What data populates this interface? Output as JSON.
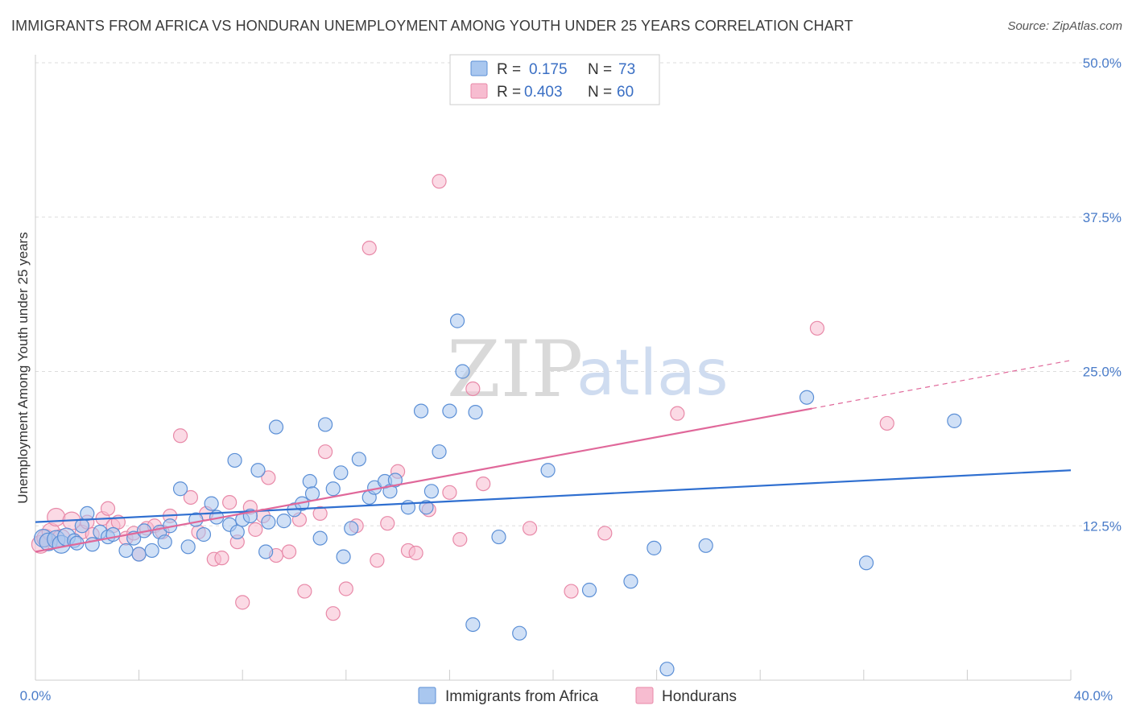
{
  "header": {
    "title": "IMMIGRANTS FROM AFRICA VS HONDURAN UNEMPLOYMENT AMONG YOUTH UNDER 25 YEARS CORRELATION CHART",
    "source": "Source: ZipAtlas.com"
  },
  "watermark": {
    "zip": "ZIP",
    "atlas": "atlas"
  },
  "legend": {
    "rows": [
      {
        "r_label": "R =",
        "r_value": "0.175",
        "n_label": "N =",
        "n_value": "73"
      },
      {
        "r_label": "R =",
        "r_value": "0.403",
        "n_label": "N =",
        "n_value": "60"
      }
    ]
  },
  "bottom_legend": {
    "items": [
      "Immigrants from Africa",
      "Hondurans"
    ]
  },
  "colors": {
    "africa_fill": "#a9c7ef",
    "africa_stroke": "#5b8fd6",
    "africa_line": "#2f6fd0",
    "honduran_fill": "#f7bcd0",
    "honduran_stroke": "#e889a8",
    "honduran_line": "#e0689a",
    "grid": "#dddddd",
    "tick_text": "#4a7cc9"
  },
  "chart_data": {
    "type": "scatter",
    "title": "IMMIGRANTS FROM AFRICA VS HONDURAN UNEMPLOYMENT AMONG YOUTH UNDER 25 YEARS CORRELATION CHART",
    "xlabel": "",
    "ylabel": "Unemployment Among Youth under 25 years",
    "xlim": [
      0,
      40
    ],
    "ylim": [
      0,
      50
    ],
    "x_tick_labels": [
      "0.0%",
      "40.0%"
    ],
    "y_ticks": [
      12.5,
      25.0,
      37.5,
      50.0
    ],
    "y_tick_labels": [
      "12.5%",
      "25.0%",
      "37.5%",
      "50.0%"
    ],
    "grid": true,
    "series": [
      {
        "name": "Immigrants from Africa",
        "R": 0.175,
        "N": 73,
        "trend": {
          "x": [
            0,
            40
          ],
          "y": [
            12.8,
            17.0
          ]
        },
        "points": [
          [
            0.3,
            11.5
          ],
          [
            0.5,
            11.2
          ],
          [
            0.8,
            11.4
          ],
          [
            1.0,
            11.0
          ],
          [
            1.2,
            11.6
          ],
          [
            1.5,
            11.3
          ],
          [
            1.6,
            11.1
          ],
          [
            1.8,
            12.5
          ],
          [
            2.0,
            13.5
          ],
          [
            2.2,
            11.0
          ],
          [
            2.5,
            12.0
          ],
          [
            2.8,
            11.6
          ],
          [
            3.0,
            11.8
          ],
          [
            3.5,
            10.5
          ],
          [
            3.8,
            11.5
          ],
          [
            4.0,
            10.2
          ],
          [
            4.2,
            12.1
          ],
          [
            4.5,
            10.5
          ],
          [
            4.8,
            12.0
          ],
          [
            5.0,
            11.2
          ],
          [
            5.2,
            12.5
          ],
          [
            5.6,
            15.5
          ],
          [
            5.9,
            10.8
          ],
          [
            6.2,
            13.0
          ],
          [
            6.5,
            11.8
          ],
          [
            6.8,
            14.3
          ],
          [
            7.0,
            13.2
          ],
          [
            7.5,
            12.6
          ],
          [
            7.7,
            17.8
          ],
          [
            7.8,
            12.0
          ],
          [
            8.0,
            13.0
          ],
          [
            8.3,
            13.3
          ],
          [
            8.6,
            17.0
          ],
          [
            8.9,
            10.4
          ],
          [
            9.0,
            12.8
          ],
          [
            9.3,
            20.5
          ],
          [
            9.6,
            12.9
          ],
          [
            10.0,
            13.8
          ],
          [
            10.3,
            14.3
          ],
          [
            10.6,
            16.1
          ],
          [
            10.7,
            15.1
          ],
          [
            11.0,
            11.5
          ],
          [
            11.2,
            20.7
          ],
          [
            11.5,
            15.5
          ],
          [
            11.8,
            16.8
          ],
          [
            11.9,
            10.0
          ],
          [
            12.2,
            12.3
          ],
          [
            12.5,
            17.9
          ],
          [
            12.9,
            14.8
          ],
          [
            13.1,
            15.6
          ],
          [
            13.5,
            16.1
          ],
          [
            13.7,
            15.3
          ],
          [
            13.9,
            16.2
          ],
          [
            14.4,
            14.0
          ],
          [
            14.9,
            21.8
          ],
          [
            15.1,
            14.0
          ],
          [
            15.3,
            15.3
          ],
          [
            15.6,
            18.5
          ],
          [
            16.0,
            21.8
          ],
          [
            16.3,
            29.1
          ],
          [
            16.5,
            25.0
          ],
          [
            16.9,
            4.5
          ],
          [
            17.0,
            21.7
          ],
          [
            17.9,
            11.6
          ],
          [
            18.7,
            3.8
          ],
          [
            19.8,
            17.0
          ],
          [
            21.4,
            7.3
          ],
          [
            23.0,
            8.0
          ],
          [
            23.9,
            10.7
          ],
          [
            24.4,
            0.9
          ],
          [
            25.9,
            10.9
          ],
          [
            29.8,
            22.9
          ],
          [
            32.1,
            9.5
          ],
          [
            35.5,
            21.0
          ]
        ]
      },
      {
        "name": "Hondurans",
        "R": 0.403,
        "N": 60,
        "trend": {
          "x": [
            0,
            30
          ],
          "y": [
            10.4,
            22.0
          ]
        },
        "trend_dashed": {
          "x": [
            30,
            40
          ],
          "y": [
            22.0,
            25.9
          ]
        },
        "points": [
          [
            0.2,
            11.0
          ],
          [
            0.4,
            11.5
          ],
          [
            0.6,
            12.0
          ],
          [
            0.8,
            13.2
          ],
          [
            1.0,
            11.5
          ],
          [
            1.4,
            12.9
          ],
          [
            1.8,
            12.0
          ],
          [
            2.0,
            12.8
          ],
          [
            2.2,
            11.8
          ],
          [
            2.6,
            13.1
          ],
          [
            2.8,
            13.9
          ],
          [
            3.0,
            12.5
          ],
          [
            3.2,
            12.8
          ],
          [
            3.5,
            11.5
          ],
          [
            3.8,
            11.9
          ],
          [
            4.0,
            10.2
          ],
          [
            4.3,
            12.3
          ],
          [
            4.6,
            12.5
          ],
          [
            4.9,
            12.0
          ],
          [
            5.2,
            13.3
          ],
          [
            5.6,
            19.8
          ],
          [
            6.0,
            14.8
          ],
          [
            6.3,
            12.0
          ],
          [
            6.6,
            13.5
          ],
          [
            6.9,
            9.8
          ],
          [
            7.2,
            9.9
          ],
          [
            7.5,
            14.4
          ],
          [
            7.8,
            11.2
          ],
          [
            8.0,
            6.3
          ],
          [
            8.3,
            14.0
          ],
          [
            8.5,
            12.2
          ],
          [
            8.8,
            13.3
          ],
          [
            9.0,
            16.4
          ],
          [
            9.3,
            10.1
          ],
          [
            9.8,
            10.4
          ],
          [
            10.2,
            13.0
          ],
          [
            10.4,
            7.2
          ],
          [
            11.0,
            13.5
          ],
          [
            11.2,
            18.5
          ],
          [
            11.5,
            5.4
          ],
          [
            12.0,
            7.4
          ],
          [
            12.4,
            12.5
          ],
          [
            12.9,
            35.0
          ],
          [
            13.2,
            9.7
          ],
          [
            13.6,
            12.7
          ],
          [
            14.0,
            16.9
          ],
          [
            14.4,
            10.5
          ],
          [
            14.7,
            10.3
          ],
          [
            15.2,
            13.8
          ],
          [
            15.6,
            40.4
          ],
          [
            16.0,
            15.2
          ],
          [
            16.4,
            11.4
          ],
          [
            16.9,
            23.6
          ],
          [
            17.3,
            15.9
          ],
          [
            19.1,
            12.3
          ],
          [
            20.7,
            7.2
          ],
          [
            22.0,
            11.9
          ],
          [
            24.8,
            21.6
          ],
          [
            30.2,
            28.5
          ],
          [
            32.9,
            20.8
          ]
        ]
      }
    ]
  }
}
